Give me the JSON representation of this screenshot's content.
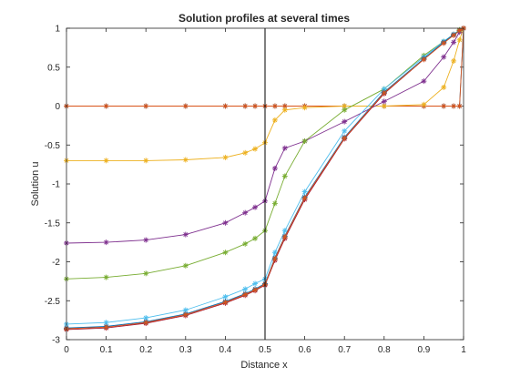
{
  "figure": {
    "title": "Solution profiles at several times",
    "xlabel": "Distance x",
    "ylabel": "Solution u"
  },
  "chart_data": {
    "type": "line",
    "title": "Solution profiles at several times",
    "xlabel": "Distance x",
    "ylabel": "Solution u",
    "xlim": [
      0,
      1
    ],
    "ylim": [
      -3,
      1
    ],
    "xticks": [
      "0",
      "0.1",
      "0.2",
      "0.3",
      "0.4",
      "0.5",
      "0.6",
      "0.7",
      "0.8",
      "0.9",
      "1"
    ],
    "yticks": [
      "1",
      "0.5",
      "0",
      "-0.5",
      "-1",
      "-1.5",
      "-2",
      "-2.5",
      "-3"
    ],
    "grid": false,
    "legend": "none",
    "marker": "asterisk",
    "reference_line_x": 0.5,
    "x": [
      0,
      0.1,
      0.2,
      0.3,
      0.4,
      0.45,
      0.475,
      0.5,
      0.525,
      0.55,
      0.6,
      0.7,
      0.8,
      0.9,
      0.95,
      0.975,
      0.99,
      1
    ],
    "series": [
      {
        "color": "#0072bd",
        "values": [
          0,
          0,
          0,
          0,
          0,
          0,
          0,
          0,
          0,
          0,
          0,
          0,
          0,
          0,
          0,
          0,
          0,
          1
        ]
      },
      {
        "color": "#d95319",
        "values": [
          0,
          0,
          0,
          0,
          0,
          0,
          0,
          0,
          0,
          0,
          0,
          0,
          0,
          0,
          0,
          0,
          0,
          1
        ]
      },
      {
        "color": "#edb120",
        "values": [
          -0.7,
          -0.7,
          -0.7,
          -0.69,
          -0.66,
          -0.6,
          -0.55,
          -0.47,
          -0.18,
          -0.05,
          -0.02,
          0,
          0,
          0.02,
          0.24,
          0.58,
          0.85,
          1
        ]
      },
      {
        "color": "#7e2f8e",
        "values": [
          -1.76,
          -1.75,
          -1.72,
          -1.65,
          -1.5,
          -1.37,
          -1.3,
          -1.22,
          -0.8,
          -0.54,
          -0.45,
          -0.2,
          0.06,
          0.32,
          0.63,
          0.82,
          0.95,
          1
        ]
      },
      {
        "color": "#77ac30",
        "values": [
          -2.22,
          -2.2,
          -2.15,
          -2.05,
          -1.88,
          -1.77,
          -1.7,
          -1.6,
          -1.25,
          -0.9,
          -0.45,
          -0.05,
          0.22,
          0.65,
          0.83,
          0.92,
          0.98,
          1
        ]
      },
      {
        "color": "#4dbeee",
        "values": [
          -2.8,
          -2.78,
          -2.72,
          -2.62,
          -2.45,
          -2.35,
          -2.28,
          -2.22,
          -1.88,
          -1.6,
          -1.1,
          -0.32,
          0.22,
          0.63,
          0.83,
          0.92,
          0.97,
          1
        ]
      },
      {
        "color": "#a2142f",
        "values": [
          -2.87,
          -2.85,
          -2.79,
          -2.69,
          -2.53,
          -2.43,
          -2.37,
          -2.3,
          -1.98,
          -1.7,
          -1.2,
          -0.42,
          0.16,
          0.6,
          0.81,
          0.91,
          0.97,
          1
        ]
      },
      {
        "color": "#0072bd",
        "values": [
          -2.85,
          -2.83,
          -2.77,
          -2.67,
          -2.51,
          -2.41,
          -2.35,
          -2.28,
          -1.95,
          -1.67,
          -1.17,
          -0.4,
          0.18,
          0.61,
          0.82,
          0.92,
          0.97,
          1
        ]
      },
      {
        "color": "#d95319",
        "values": [
          -2.86,
          -2.84,
          -2.78,
          -2.68,
          -2.52,
          -2.42,
          -2.36,
          -2.29,
          -1.96,
          -1.68,
          -1.18,
          -0.41,
          0.17,
          0.6,
          0.81,
          0.91,
          0.97,
          1
        ]
      }
    ]
  }
}
